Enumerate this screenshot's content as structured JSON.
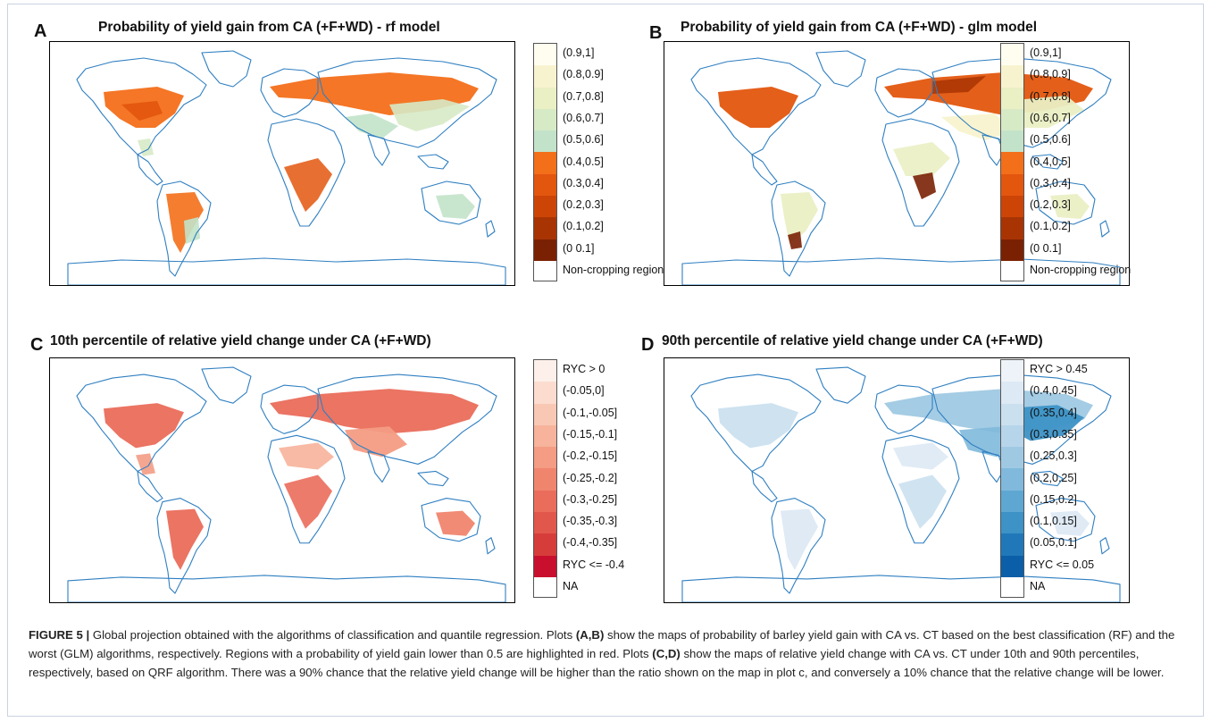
{
  "panels": [
    {
      "letter": "A",
      "title": "Probability of yield gain from CA (+F+WD) - rf model",
      "scheme": "prob",
      "legend": {
        "labels": [
          "(0.9,1]",
          "(0.8,0.9]",
          "(0.7,0.8]",
          "(0.6,0.7]",
          "(0.5,0.6]",
          "(0.4,0.5]",
          "(0.3,0.4]",
          "(0.2,0.3]",
          "(0.1,0.2]",
          "(0 0.1]",
          "Non-cropping region"
        ],
        "colors": [
          "#fffdf0",
          "#f8f3cf",
          "#eaefc4",
          "#d7eac6",
          "#c2e3c9",
          "#f36f1a",
          "#e3560e",
          "#cc4507",
          "#a83404",
          "#7a2104",
          "#ffffff"
        ]
      }
    },
    {
      "letter": "B",
      "title": "Probability of yield gain from CA (+F+WD) - glm model",
      "scheme": "prob-dark",
      "legend": {
        "labels": [
          "(0.9,1]",
          "(0.8,0.9]",
          "(0.7,0.8]",
          "(0.6,0.7]",
          "(0.5,0.6]",
          "(0.4,0.5]",
          "(0.3,0.4]",
          "(0.2,0.3]",
          "(0.1,0.2]",
          "(0 0.1]",
          "Non-cropping region"
        ],
        "colors": [
          "#fffdf0",
          "#f8f3cf",
          "#eaefc4",
          "#d7eac6",
          "#c2e3c9",
          "#f36f1a",
          "#e3560e",
          "#cc4507",
          "#a83404",
          "#7a2104",
          "#ffffff"
        ]
      }
    },
    {
      "letter": "C",
      "title": "10th percentile of relative yield change under CA (+F+WD)",
      "scheme": "reds",
      "legend": {
        "labels": [
          "RYC > 0",
          "(-0.05,0]",
          "(-0.1,-0.05]",
          "(-0.15,-0.1]",
          "(-0.2,-0.15]",
          "(-0.25,-0.2]",
          "(-0.3,-0.25]",
          "(-0.35,-0.3]",
          "(-0.4,-0.35]",
          "RYC <= -0.4",
          "NA"
        ],
        "colors": [
          "#fdf0ea",
          "#fbdccf",
          "#f9c8b4",
          "#f7b39b",
          "#f49c84",
          "#f0856e",
          "#ea6d5b",
          "#e2574b",
          "#d63d3a",
          "#c8102e",
          "#ffffff"
        ]
      }
    },
    {
      "letter": "D",
      "title": "90th percentile of relative yield change under CA (+F+WD)",
      "scheme": "blues",
      "legend": {
        "labels": [
          "RYC > 0.45",
          "(0.4,0.45]",
          "(0.35,0.4]",
          "(0.3,0.35]",
          "(0.25,0.3]",
          "(0.2,0.25]",
          "(0.15,0.2]",
          "(0.1,0.15]",
          "(0.05,0.1]",
          "RYC <= 0.05",
          "NA"
        ],
        "colors": [
          "#eef3f9",
          "#dde9f4",
          "#cbe0ef",
          "#b7d5ea",
          "#9fc9e3",
          "#80b9dc",
          "#5ea7d2",
          "#3d92c6",
          "#2078b8",
          "#0b5fa8",
          "#ffffff"
        ]
      }
    }
  ],
  "caption": {
    "lead": "FIGURE 5 |",
    "p1": " Global projection obtained with the algorithms of classification and quantile regression. Plots ",
    "ref1": "(A,B)",
    "p2": " show the maps of probability of barley yield gain with CA vs. CT based on the best classification (RF) and the worst (GLM) algorithms, respectively. Regions with a probability of yield gain lower than 0.5 are highlighted in red. Plots ",
    "ref2": "(C,D)",
    "p3": " show the maps of relative yield change with CA vs. CT under 10th and 90th percentiles, respectively, based on QRF algorithm. There was a 90% chance that the relative yield change will be higher than the ratio shown on the map in plot c, and conversely a 10% chance that the relative change will be lower."
  },
  "colors": {
    "coastline": "#2f7fc1"
  }
}
